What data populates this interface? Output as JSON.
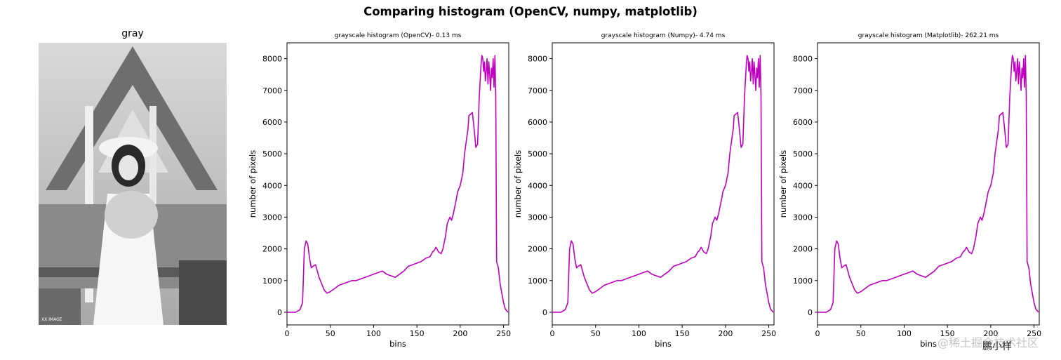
{
  "figure": {
    "suptitle": "Comparing histogram (OpenCV, numpy, matplotlib)",
    "image_panel": {
      "title": "gray",
      "photo_text": "XX IMAGE"
    },
    "watermark": "@稀土掘金技术社区",
    "watermark_signature": "鹏小样"
  },
  "colors": {
    "line": "#c000c0",
    "axes": "#000000",
    "background": "#ffffff"
  },
  "chart_data": [
    {
      "type": "line",
      "title": "grayscale histogram (OpenCV)-  0.13 ms",
      "xlabel": "bins",
      "ylabel": "number of pixels",
      "xlim": [
        0,
        256
      ],
      "ylim": [
        -400,
        8500
      ],
      "xticks": [
        "0",
        "50",
        "100",
        "150",
        "200",
        "250"
      ],
      "yticks": [
        "0",
        "1000",
        "2000",
        "3000",
        "4000",
        "5000",
        "6000",
        "7000",
        "8000"
      ],
      "grid": false,
      "series": [
        {
          "color": "#c000c0",
          "x": [
            0,
            10,
            15,
            18,
            20,
            22,
            24,
            26,
            28,
            30,
            33,
            35,
            37,
            40,
            43,
            46,
            50,
            55,
            60,
            65,
            70,
            75,
            80,
            85,
            90,
            95,
            100,
            105,
            110,
            115,
            120,
            125,
            130,
            135,
            140,
            145,
            150,
            155,
            160,
            165,
            168,
            170,
            172,
            175,
            178,
            180,
            183,
            185,
            188,
            190,
            192,
            195,
            197,
            200,
            203,
            205,
            207,
            209,
            210,
            212,
            214,
            216,
            218,
            220,
            222,
            224,
            225,
            226,
            227,
            228,
            229,
            230,
            231,
            232,
            233,
            234,
            235,
            236,
            237,
            238,
            239,
            240,
            241,
            242,
            244,
            246,
            248,
            250,
            252,
            255
          ],
          "y": [
            0,
            0,
            80,
            300,
            2000,
            2250,
            2150,
            1700,
            1400,
            1450,
            1500,
            1300,
            1100,
            900,
            700,
            600,
            650,
            750,
            850,
            900,
            950,
            1000,
            1000,
            1050,
            1100,
            1150,
            1200,
            1250,
            1300,
            1200,
            1150,
            1100,
            1200,
            1300,
            1450,
            1500,
            1550,
            1600,
            1700,
            1750,
            1900,
            1950,
            2050,
            1900,
            1850,
            2000,
            2400,
            2800,
            3000,
            2900,
            3100,
            3500,
            3800,
            4000,
            4400,
            5000,
            5400,
            5800,
            6200,
            6250,
            6300,
            5800,
            5200,
            5300,
            6800,
            7800,
            8100,
            8000,
            7600,
            7900,
            7300,
            7600,
            8000,
            7200,
            7900,
            7500,
            7000,
            7700,
            7400,
            8000,
            7100,
            8100,
            6800,
            1600,
            1400,
            900,
            600,
            300,
            100,
            0
          ]
        }
      ]
    },
    {
      "type": "line",
      "title": "grayscale histogram (Numpy)-  4.74 ms",
      "xlabel": "bins",
      "ylabel": "number of pixels",
      "xlim": [
        0,
        256
      ],
      "ylim": [
        -400,
        8500
      ],
      "xticks": [
        "0",
        "50",
        "100",
        "150",
        "200",
        "250"
      ],
      "yticks": [
        "0",
        "1000",
        "2000",
        "3000",
        "4000",
        "5000",
        "6000",
        "7000",
        "8000"
      ],
      "grid": false,
      "series": [
        {
          "color": "#c000c0",
          "x": [
            0,
            10,
            15,
            18,
            20,
            22,
            24,
            26,
            28,
            30,
            33,
            35,
            37,
            40,
            43,
            46,
            50,
            55,
            60,
            65,
            70,
            75,
            80,
            85,
            90,
            95,
            100,
            105,
            110,
            115,
            120,
            125,
            130,
            135,
            140,
            145,
            150,
            155,
            160,
            165,
            168,
            170,
            172,
            175,
            178,
            180,
            183,
            185,
            188,
            190,
            192,
            195,
            197,
            200,
            203,
            205,
            207,
            209,
            210,
            212,
            214,
            216,
            218,
            220,
            222,
            224,
            225,
            226,
            227,
            228,
            229,
            230,
            231,
            232,
            233,
            234,
            235,
            236,
            237,
            238,
            239,
            240,
            241,
            242,
            244,
            246,
            248,
            250,
            252,
            255
          ],
          "y": [
            0,
            0,
            80,
            300,
            2000,
            2250,
            2150,
            1700,
            1400,
            1450,
            1500,
            1300,
            1100,
            900,
            700,
            600,
            650,
            750,
            850,
            900,
            950,
            1000,
            1000,
            1050,
            1100,
            1150,
            1200,
            1250,
            1300,
            1200,
            1150,
            1100,
            1200,
            1300,
            1450,
            1500,
            1550,
            1600,
            1700,
            1750,
            1900,
            1950,
            2050,
            1900,
            1850,
            2000,
            2400,
            2800,
            3000,
            2900,
            3100,
            3500,
            3800,
            4000,
            4400,
            5000,
            5400,
            5800,
            6200,
            6250,
            6300,
            5800,
            5200,
            5300,
            6800,
            7800,
            8100,
            8000,
            7600,
            7900,
            7300,
            7600,
            8000,
            7200,
            7900,
            7500,
            7000,
            7700,
            7400,
            8000,
            7100,
            8100,
            6800,
            1600,
            1400,
            900,
            600,
            300,
            100,
            0
          ]
        }
      ]
    },
    {
      "type": "line",
      "title": "grayscale histogram (Matplotlib)- 262.21 ms",
      "xlabel": "bins",
      "ylabel": "number of pixels",
      "xlim": [
        0,
        256
      ],
      "ylim": [
        -400,
        8500
      ],
      "xticks": [
        "0",
        "50",
        "100",
        "150",
        "200",
        "250"
      ],
      "yticks": [
        "0",
        "1000",
        "2000",
        "3000",
        "4000",
        "5000",
        "6000",
        "7000",
        "8000"
      ],
      "grid": false,
      "series": [
        {
          "color": "#c000c0",
          "x": [
            0,
            10,
            15,
            18,
            20,
            22,
            24,
            26,
            28,
            30,
            33,
            35,
            37,
            40,
            43,
            46,
            50,
            55,
            60,
            65,
            70,
            75,
            80,
            85,
            90,
            95,
            100,
            105,
            110,
            115,
            120,
            125,
            130,
            135,
            140,
            145,
            150,
            155,
            160,
            165,
            168,
            170,
            172,
            175,
            178,
            180,
            183,
            185,
            188,
            190,
            192,
            195,
            197,
            200,
            203,
            205,
            207,
            209,
            210,
            212,
            214,
            216,
            218,
            220,
            222,
            224,
            225,
            226,
            227,
            228,
            229,
            230,
            231,
            232,
            233,
            234,
            235,
            236,
            237,
            238,
            239,
            240,
            241,
            242,
            244,
            246,
            248,
            250,
            252,
            255
          ],
          "y": [
            0,
            0,
            80,
            300,
            2000,
            2250,
            2150,
            1700,
            1400,
            1450,
            1500,
            1300,
            1100,
            900,
            700,
            600,
            650,
            750,
            850,
            900,
            950,
            1000,
            1000,
            1050,
            1100,
            1150,
            1200,
            1250,
            1300,
            1200,
            1150,
            1100,
            1200,
            1300,
            1450,
            1500,
            1550,
            1600,
            1700,
            1750,
            1900,
            1950,
            2050,
            1900,
            1850,
            2000,
            2400,
            2800,
            3000,
            2900,
            3100,
            3500,
            3800,
            4000,
            4400,
            5000,
            5400,
            5800,
            6200,
            6250,
            6300,
            5800,
            5200,
            5300,
            6800,
            7800,
            8100,
            8000,
            7600,
            7900,
            7300,
            7600,
            8000,
            7200,
            7900,
            7500,
            7000,
            7700,
            7400,
            8000,
            7100,
            8100,
            6800,
            1600,
            1400,
            900,
            600,
            300,
            100,
            0
          ]
        }
      ]
    }
  ]
}
